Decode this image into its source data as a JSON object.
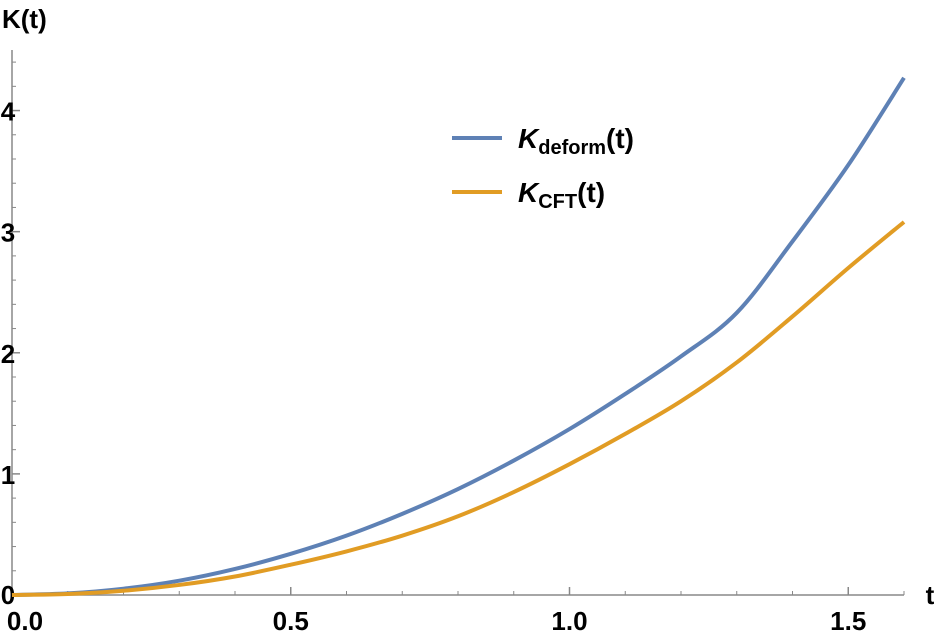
{
  "chart_data": {
    "type": "line",
    "xlabel": "t",
    "ylabel": "K(t)",
    "xlim": [
      0,
      1.6
    ],
    "ylim": [
      0,
      4.5
    ],
    "x_ticks": [
      {
        "value": 0.0,
        "label": "0.0"
      },
      {
        "value": 0.5,
        "label": "0.5"
      },
      {
        "value": 1.0,
        "label": "1.0"
      },
      {
        "value": 1.5,
        "label": "1.5"
      }
    ],
    "y_ticks": [
      {
        "value": 0,
        "label": "0"
      },
      {
        "value": 1,
        "label": "1"
      },
      {
        "value": 2,
        "label": "2"
      },
      {
        "value": 3,
        "label": "3"
      },
      {
        "value": 4,
        "label": "4"
      }
    ],
    "legend_position": "top-center",
    "grid": false,
    "series": [
      {
        "name": "K_deform(t)",
        "label_main": "K",
        "label_sub": "deform",
        "label_tail": "(t)",
        "color": "#5E81B5",
        "points": [
          [
            0,
            0
          ],
          [
            0.1,
            0.013
          ],
          [
            0.2,
            0.052
          ],
          [
            0.3,
            0.118
          ],
          [
            0.4,
            0.215
          ],
          [
            0.5,
            0.34
          ],
          [
            0.6,
            0.49
          ],
          [
            0.7,
            0.67
          ],
          [
            0.8,
            0.875
          ],
          [
            0.9,
            1.11
          ],
          [
            1.0,
            1.37
          ],
          [
            1.1,
            1.66
          ],
          [
            1.2,
            1.97
          ],
          [
            1.3,
            2.33
          ],
          [
            1.4,
            2.92
          ],
          [
            1.5,
            3.55
          ],
          [
            1.6,
            4.27
          ]
        ]
      },
      {
        "name": "K_CFT(t)",
        "label_main": "K",
        "label_sub": "CFT",
        "label_tail": "(t)",
        "color": "#E19C24",
        "points": [
          [
            0,
            0
          ],
          [
            0.1,
            0.008
          ],
          [
            0.2,
            0.035
          ],
          [
            0.3,
            0.083
          ],
          [
            0.4,
            0.153
          ],
          [
            0.5,
            0.25
          ],
          [
            0.6,
            0.36
          ],
          [
            0.7,
            0.49
          ],
          [
            0.8,
            0.65
          ],
          [
            0.9,
            0.85
          ],
          [
            1.0,
            1.08
          ],
          [
            1.1,
            1.33
          ],
          [
            1.2,
            1.6
          ],
          [
            1.3,
            1.92
          ],
          [
            1.4,
            2.3
          ],
          [
            1.5,
            2.7
          ],
          [
            1.6,
            3.08
          ]
        ]
      }
    ]
  }
}
